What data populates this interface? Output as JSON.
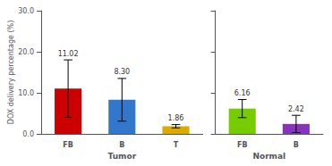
{
  "chart_data": [
    {
      "type": "bar",
      "categories": [
        "FB",
        "B",
        "T"
      ],
      "values": [
        11.02,
        8.3,
        1.86
      ],
      "value_labels": [
        "11.02",
        "8.30",
        "1.86"
      ],
      "errors": [
        7.0,
        5.2,
        0.4
      ],
      "colors": [
        "#cc0000",
        "#3377cc",
        "#ddaa00"
      ],
      "xlabel": "Tumor",
      "ylabel": "DOX delivery percentage (%)",
      "ylim": [
        0,
        30.0
      ],
      "yticks": [
        {
          "value": 0.0,
          "label": "0.0"
        },
        {
          "value": 10.0,
          "label": "10.0"
        },
        {
          "value": 20.0,
          "label": "20.0"
        },
        {
          "value": 30.0,
          "label": "30.0"
        }
      ],
      "grid": false,
      "data_labels": true
    },
    {
      "type": "bar",
      "categories": [
        "FB",
        "B"
      ],
      "values": [
        6.16,
        2.42
      ],
      "value_labels": [
        "6.16",
        "2.42"
      ],
      "errors": [
        2.2,
        2.1
      ],
      "colors": [
        "#77cc00",
        "#8833bb"
      ],
      "xlabel": "Normal",
      "ylim": [
        0,
        30.0
      ],
      "yticks": [
        0,
        10,
        20,
        30
      ],
      "grid": false,
      "data_labels": true,
      "tick_labels": "x"
    }
  ]
}
